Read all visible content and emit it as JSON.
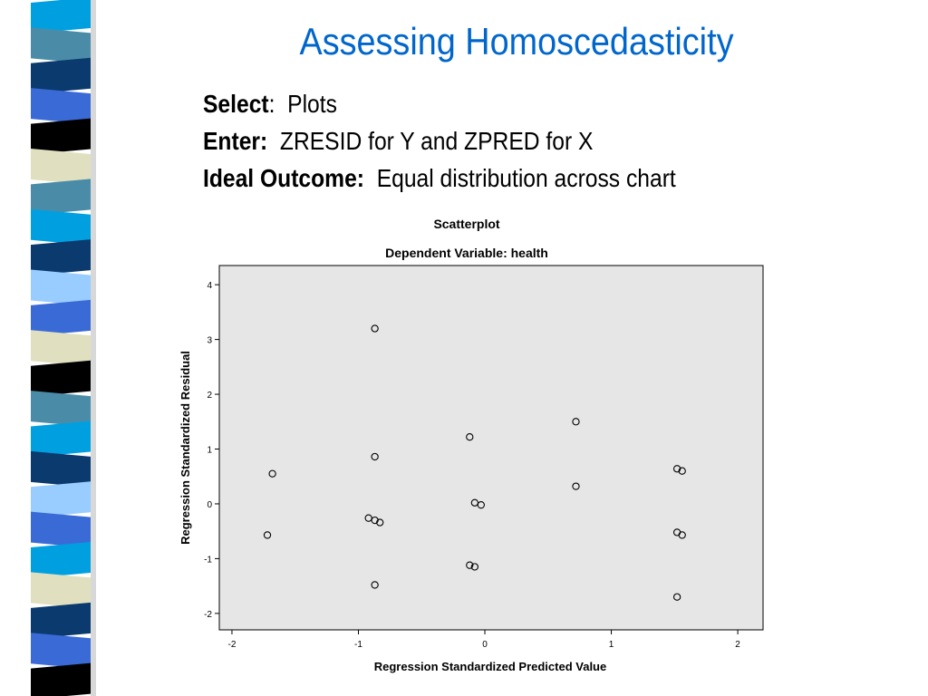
{
  "slide": {
    "title": "Assessing Homoscedasticity",
    "bullets": [
      {
        "label": "Select",
        "sep": ":  ",
        "text": "Plots"
      },
      {
        "label": "Enter:",
        "sep": "  ",
        "text": "ZRESID for Y and ZPRED for X"
      },
      {
        "label": "Ideal Outcome:",
        "sep": "  ",
        "text": "Equal distribution across chart"
      }
    ]
  },
  "decor": {
    "stripe_colors": [
      "#00a0e0",
      "#4a8ca8",
      "#0a3a6e",
      "#3a6ad6",
      "#000000",
      "#e0e0c0",
      "#4a8ca8",
      "#00a0e0",
      "#0a3a6e",
      "#99ccff",
      "#3a6ad6",
      "#e0e0c0",
      "#000000",
      "#4a8ca8",
      "#00a0e0",
      "#0a3a6e",
      "#99ccff",
      "#3a6ad6",
      "#00a0e0",
      "#e0e0c0",
      "#0a3a6e",
      "#3a6ad6",
      "#000000"
    ]
  },
  "chart_data": {
    "type": "scatter",
    "title": "Scatterplot",
    "subtitle": "Dependent Variable: health",
    "xlabel": "Regression Standardized Predicted Value",
    "ylabel": "Regression Standardized Residual",
    "xlim": [
      -2.1,
      2.2
    ],
    "ylim": [
      -2.3,
      4.35
    ],
    "xticks": [
      -2,
      -1,
      0,
      1,
      2
    ],
    "yticks": [
      -2,
      -1,
      0,
      1,
      2,
      3,
      4
    ],
    "grid": false,
    "plot_background": "#e6e6e6",
    "point_color": "#000000",
    "points": [
      {
        "x": -0.87,
        "y": 3.2
      },
      {
        "x": -0.87,
        "y": 0.86
      },
      {
        "x": -0.87,
        "y": -1.48
      },
      {
        "x": -1.68,
        "y": 0.55
      },
      {
        "x": -1.72,
        "y": -0.57
      },
      {
        "x": -0.92,
        "y": -0.26
      },
      {
        "x": -0.87,
        "y": -0.3
      },
      {
        "x": -0.83,
        "y": -0.34
      },
      {
        "x": -0.12,
        "y": 1.22
      },
      {
        "x": -0.08,
        "y": 0.02
      },
      {
        "x": -0.03,
        "y": -0.02
      },
      {
        "x": -0.12,
        "y": -1.12
      },
      {
        "x": -0.08,
        "y": -1.15
      },
      {
        "x": 0.72,
        "y": 1.5
      },
      {
        "x": 0.72,
        "y": 0.32
      },
      {
        "x": 1.52,
        "y": 0.64
      },
      {
        "x": 1.56,
        "y": 0.6
      },
      {
        "x": 1.52,
        "y": -0.52
      },
      {
        "x": 1.56,
        "y": -0.57
      },
      {
        "x": 1.52,
        "y": -1.7
      }
    ]
  }
}
